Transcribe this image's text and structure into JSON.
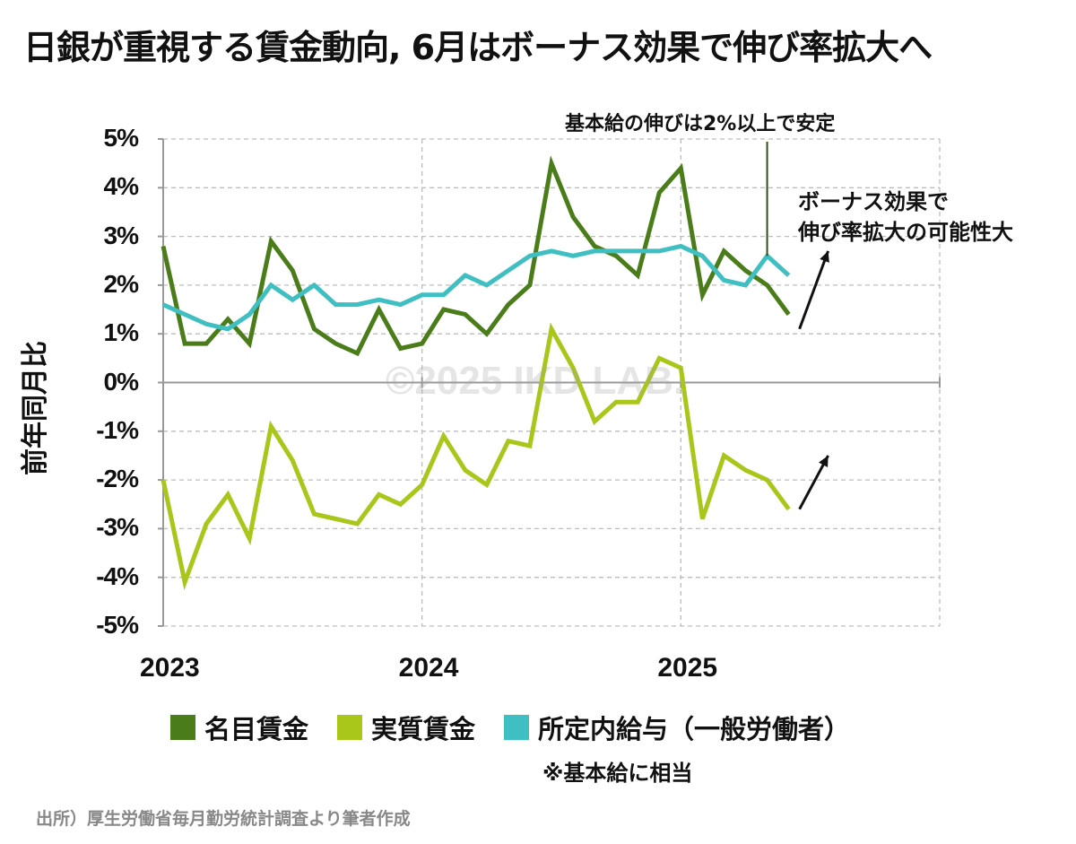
{
  "title": "日銀が重視する賃金動向, 6月はボーナス効果で伸び率拡大へ",
  "watermark": "©2025 IKD LAB.",
  "annotation_top": "基本給の伸びは2%以上で安定",
  "annotation_right": [
    "ボーナス効果で",
    "伸び率拡大の可能性大"
  ],
  "legend_note": "※基本給に相当",
  "source": "出所）厚生労働省毎月勤労統計調査より筆者作成",
  "chart_data": {
    "type": "line",
    "ylabel": "前年同月比",
    "ylim": [
      -5,
      5
    ],
    "yticks": [
      "5%",
      "4%",
      "3%",
      "2%",
      "1%",
      "0%",
      "-1%",
      "-2%",
      "-3%",
      "-4%",
      "-5%"
    ],
    "xticks": [
      "2023",
      "2024",
      "2025"
    ],
    "x": [
      "2023-01",
      "2023-02",
      "2023-03",
      "2023-04",
      "2023-05",
      "2023-06",
      "2023-07",
      "2023-08",
      "2023-09",
      "2023-10",
      "2023-11",
      "2023-12",
      "2024-01",
      "2024-02",
      "2024-03",
      "2024-04",
      "2024-05",
      "2024-06",
      "2024-07",
      "2024-08",
      "2024-09",
      "2024-10",
      "2024-11",
      "2024-12",
      "2025-01",
      "2025-02",
      "2025-03",
      "2025-04",
      "2025-05",
      "2025-06"
    ],
    "xlim": [
      "2023-01",
      "2025-12"
    ],
    "grid": true,
    "legend_position": "bottom",
    "series": [
      {
        "name": "名目賃金",
        "color": "#4a7d1a",
        "values": [
          2.8,
          0.8,
          0.8,
          1.3,
          0.8,
          2.9,
          2.3,
          1.1,
          0.8,
          0.6,
          1.5,
          0.7,
          0.8,
          1.5,
          1.4,
          1.0,
          1.6,
          2.0,
          4.5,
          3.4,
          2.8,
          2.6,
          2.2,
          3.9,
          4.4,
          1.8,
          2.7,
          2.3,
          2.0,
          1.4
        ]
      },
      {
        "name": "実質賃金",
        "color": "#a9c61a",
        "values": [
          -2.0,
          -4.1,
          -2.9,
          -2.3,
          -3.2,
          -0.9,
          -1.6,
          -2.7,
          -2.8,
          -2.9,
          -2.3,
          -2.5,
          -2.1,
          -1.1,
          -1.8,
          -2.1,
          -1.2,
          -1.3,
          1.1,
          0.3,
          -0.8,
          -0.4,
          -0.4,
          0.5,
          0.3,
          -2.8,
          -1.5,
          -1.8,
          -2.0,
          -2.6
        ]
      },
      {
        "name": "所定内給与（一般労働者）",
        "color": "#3fbfc2",
        "values": [
          1.6,
          1.4,
          1.2,
          1.1,
          1.4,
          2.0,
          1.7,
          2.0,
          1.6,
          1.6,
          1.7,
          1.6,
          1.8,
          1.8,
          2.2,
          2.0,
          2.3,
          2.6,
          2.7,
          2.6,
          2.7,
          2.7,
          2.7,
          2.7,
          2.8,
          2.6,
          2.1,
          2.0,
          2.6,
          2.2
        ]
      }
    ]
  }
}
